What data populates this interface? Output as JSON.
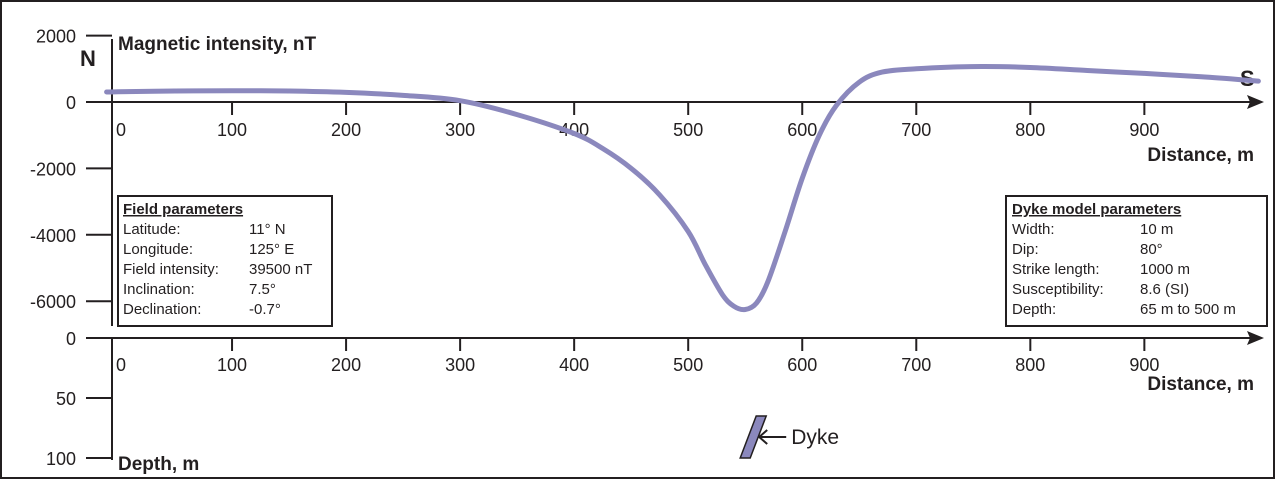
{
  "chart_data": [
    {
      "type": "line",
      "title": "Magnetic intensity, nT",
      "xlabel": "Distance, m",
      "ylabel": "Magnetic intensity, nT",
      "xlim": [
        0,
        1000
      ],
      "ylim": [
        -7000,
        2000
      ],
      "x_ticks": [
        "0",
        "100",
        "200",
        "300",
        "400",
        "500",
        "600",
        "700",
        "800",
        "900"
      ],
      "y_ticks": [
        "2000",
        "0",
        "-2000",
        "-4000",
        "-6000"
      ],
      "y_tick_values": [
        2000,
        0,
        -2000,
        -4000,
        -6000
      ],
      "direction_left": "N",
      "direction_right": "S",
      "grid": false,
      "series": [
        {
          "color": "#8b88bd",
          "x": [
            -10,
            0,
            50,
            100,
            150,
            200,
            250,
            300,
            350,
            400,
            425,
            450,
            475,
            500,
            515,
            530,
            540,
            550,
            560,
            570,
            585,
            600,
            615,
            630,
            650,
            670,
            700,
            730,
            760,
            800,
            850,
            900,
            950,
            1000
          ],
          "y": [
            300,
            310,
            330,
            340,
            330,
            290,
            200,
            40,
            -380,
            -950,
            -1400,
            -2000,
            -2800,
            -3900,
            -4900,
            -5800,
            -6150,
            -6250,
            -6050,
            -5400,
            -3900,
            -2300,
            -1000,
            -100,
            600,
            900,
            1000,
            1050,
            1070,
            1040,
            950,
            860,
            760,
            630
          ]
        }
      ]
    },
    {
      "type": "diagram",
      "xlabel": "Distance, m",
      "ylabel": "Depth, m",
      "xlim": [
        0,
        1000
      ],
      "ylim": [
        100,
        0
      ],
      "x_ticks": [
        "0",
        "100",
        "200",
        "300",
        "400",
        "500",
        "600",
        "700",
        "800",
        "900"
      ],
      "y_ticks": [
        "0",
        "50",
        "100"
      ],
      "y_tick_values": [
        0,
        50,
        100
      ],
      "dyke": {
        "label": "Dyke",
        "x_center": 557,
        "top_depth": 65,
        "bottom_depth": 100,
        "color": "#8b88bd"
      }
    }
  ],
  "field_parameters": {
    "title": "Field parameters",
    "rows": [
      {
        "label": "Latitude:",
        "value": "11° N"
      },
      {
        "label": "Longitude:",
        "value": "125° E"
      },
      {
        "label": "Field intensity:",
        "value": "39500 nT"
      },
      {
        "label": "Inclination:",
        "value": "7.5°"
      },
      {
        "label": "Declination:",
        "value": "-0.7°"
      }
    ]
  },
  "dyke_parameters": {
    "title": "Dyke model parameters",
    "rows": [
      {
        "label": "Width:",
        "value": "10 m"
      },
      {
        "label": "Dip:",
        "value": "80°"
      },
      {
        "label": "Strike length:",
        "value": "1000 m"
      },
      {
        "label": "Susceptibility:",
        "value": "8.6 (SI)"
      },
      {
        "label": "Depth:",
        "value": "65 m to 500 m"
      }
    ]
  }
}
